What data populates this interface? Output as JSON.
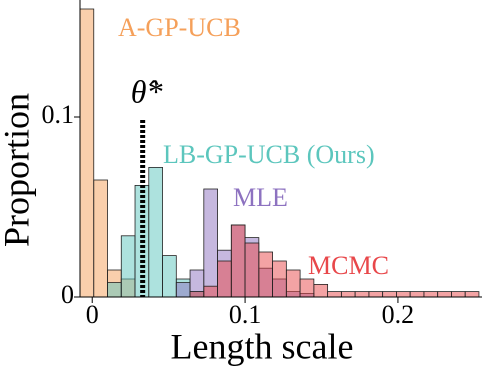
{
  "chart_data": {
    "type": "histogram",
    "xlabel": "Length scale",
    "ylabel": "Proportion",
    "bins": [
      -0.008,
      0.001,
      0.01,
      0.019,
      0.028,
      0.037,
      0.046,
      0.055,
      0.064,
      0.073,
      0.082,
      0.091,
      0.1,
      0.109,
      0.118,
      0.127,
      0.136,
      0.145,
      0.154,
      0.163,
      0.172,
      0.181,
      0.19,
      0.199,
      0.208,
      0.217,
      0.226,
      0.235,
      0.244,
      0.253
    ],
    "series": [
      {
        "name": "A-GP-UCB",
        "color": "#f5a05a",
        "values": [
          0.16,
          0.065,
          0.015,
          0.01,
          0,
          0,
          0,
          0,
          0,
          0,
          0,
          0,
          0,
          0,
          0,
          0,
          0,
          0,
          0,
          0,
          0,
          0,
          0,
          0,
          0,
          0,
          0,
          0,
          0
        ]
      },
      {
        "name": "LB-GP-UCB (Ours)",
        "color": "#5cc6bd",
        "values": [
          0,
          0,
          0.008,
          0.034,
          0.062,
          0.072,
          0.023,
          0.01,
          0.003,
          0,
          0,
          0,
          0,
          0,
          0,
          0,
          0,
          0,
          0,
          0,
          0,
          0,
          0,
          0,
          0,
          0,
          0,
          0,
          0
        ]
      },
      {
        "name": "MLE",
        "color": "#8d72c0",
        "values": [
          0,
          0,
          0,
          0,
          0,
          0,
          0,
          0.008,
          0.015,
          0.06,
          0.026,
          0.04,
          0.033,
          0.016,
          0.01,
          0.003,
          0.002,
          0,
          0,
          0,
          0,
          0,
          0,
          0,
          0,
          0,
          0,
          0,
          0
        ]
      },
      {
        "name": "MCMC",
        "color": "#e8474a",
        "values": [
          0,
          0,
          0,
          0,
          0,
          0,
          0,
          0,
          0.003,
          0.006,
          0.02,
          0.04,
          0.03,
          0.025,
          0.02,
          0.015,
          0.01,
          0.007,
          0.003,
          0.003,
          0.003,
          0.003,
          0.003,
          0.003,
          0.003,
          0.003,
          0.003,
          0.003,
          0.003
        ]
      }
    ],
    "marker": {
      "label": "θ̂*",
      "x": 0.033
    },
    "xlim": [
      -0.008,
      0.255
    ],
    "ylim": [
      0,
      0.165
    ],
    "xticks": [
      0,
      0.1,
      0.2
    ],
    "yticks": [
      0,
      0.1
    ]
  }
}
